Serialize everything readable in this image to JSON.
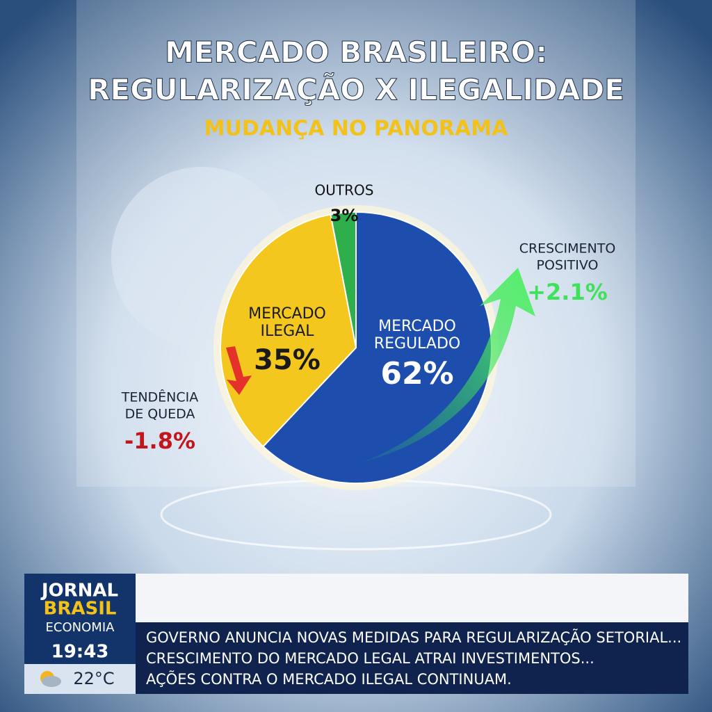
{
  "chart_data": {
    "type": "pie",
    "title": [
      "MERCADO BRASILEIRO:",
      "REGULARIZAÇÃO X ILEGALIDADE"
    ],
    "subtitle": "MUDANÇA NO PANORAMA",
    "categories": [
      [
        "MERCADO",
        "REGULADO"
      ],
      [
        "MERCADO",
        "ILEGAL"
      ],
      [
        "OUTROS"
      ]
    ],
    "values": [
      62,
      35,
      3
    ],
    "value_labels": [
      "62%",
      "35%",
      "3%"
    ],
    "colors": [
      "#1d4ead",
      "#f3c71d",
      "#2faf4c"
    ],
    "annotations": [
      {
        "text": [
          "CRESCIMENTO",
          "POSITIVO"
        ],
        "change": "+2.1%",
        "color": "#3fe05a"
      },
      {
        "text": [
          "TENDÊNCIA",
          "DE QUEDA"
        ],
        "change": "-1.8%",
        "color": "#c3161c"
      }
    ]
  },
  "ticker": {
    "brand": [
      "JORNAL",
      "BRASIL"
    ],
    "section": "ECONOMIA",
    "time": "19:43",
    "temperature": "22°C",
    "headlines": [
      "GOVERNO ANUNCIA NOVAS MEDIDAS PARA  REGULARIZAÇÃO SETORIAL...",
      "CRESCIMENTO DO MERCADO LEGAL ATRAI INVESTIMENTOS...",
      "AÇÕES CONTRA O MERCADO ILEGAL CONTINUAM."
    ]
  }
}
